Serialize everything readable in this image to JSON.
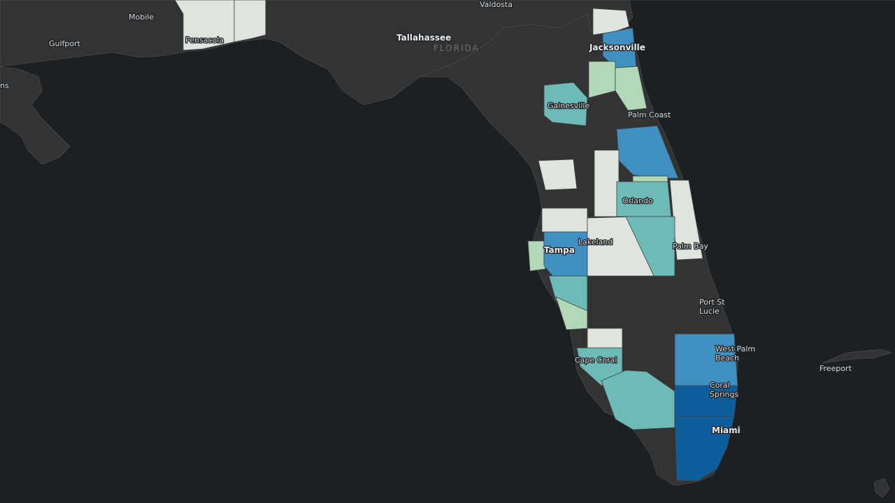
{
  "map": {
    "state_label": "FLORIDA",
    "cities": [
      {
        "id": "valdosta",
        "name": "Valdosta"
      },
      {
        "id": "mobile",
        "name": "Mobile"
      },
      {
        "id": "gulfport",
        "name": "Gulfport"
      },
      {
        "id": "pensacola",
        "name": "Pensacola"
      },
      {
        "id": "tallahassee",
        "name": "Tallahassee"
      },
      {
        "id": "jacksonville",
        "name": "Jacksonville"
      },
      {
        "id": "gainesville",
        "name": "Gainesville"
      },
      {
        "id": "palm-coast",
        "name": "Palm Coast"
      },
      {
        "id": "orlando",
        "name": "Orlando"
      },
      {
        "id": "palm-bay",
        "name": "Palm Bay"
      },
      {
        "id": "tampa",
        "name": "Tampa"
      },
      {
        "id": "lakeland",
        "name": "Lakeland"
      },
      {
        "id": "port-st-lucie",
        "name": "Port St Lucie"
      },
      {
        "id": "west-palm-beach",
        "name": "West Palm Beach"
      },
      {
        "id": "cape-coral",
        "name": "Cape Coral"
      },
      {
        "id": "coral-springs",
        "name": "Coral Springs"
      },
      {
        "id": "miami",
        "name": "Miami"
      },
      {
        "id": "freeport",
        "name": "Freeport"
      },
      {
        "id": "ns",
        "name": "ns"
      }
    ],
    "colors": {
      "background": "#1c2023",
      "land": "#333333",
      "class_0": "#dfe4dc",
      "class_1": "#b2d8b8",
      "class_2": "#6dbbb7",
      "class_3": "#3f90c0",
      "class_4": "#0f5e9c"
    }
  }
}
